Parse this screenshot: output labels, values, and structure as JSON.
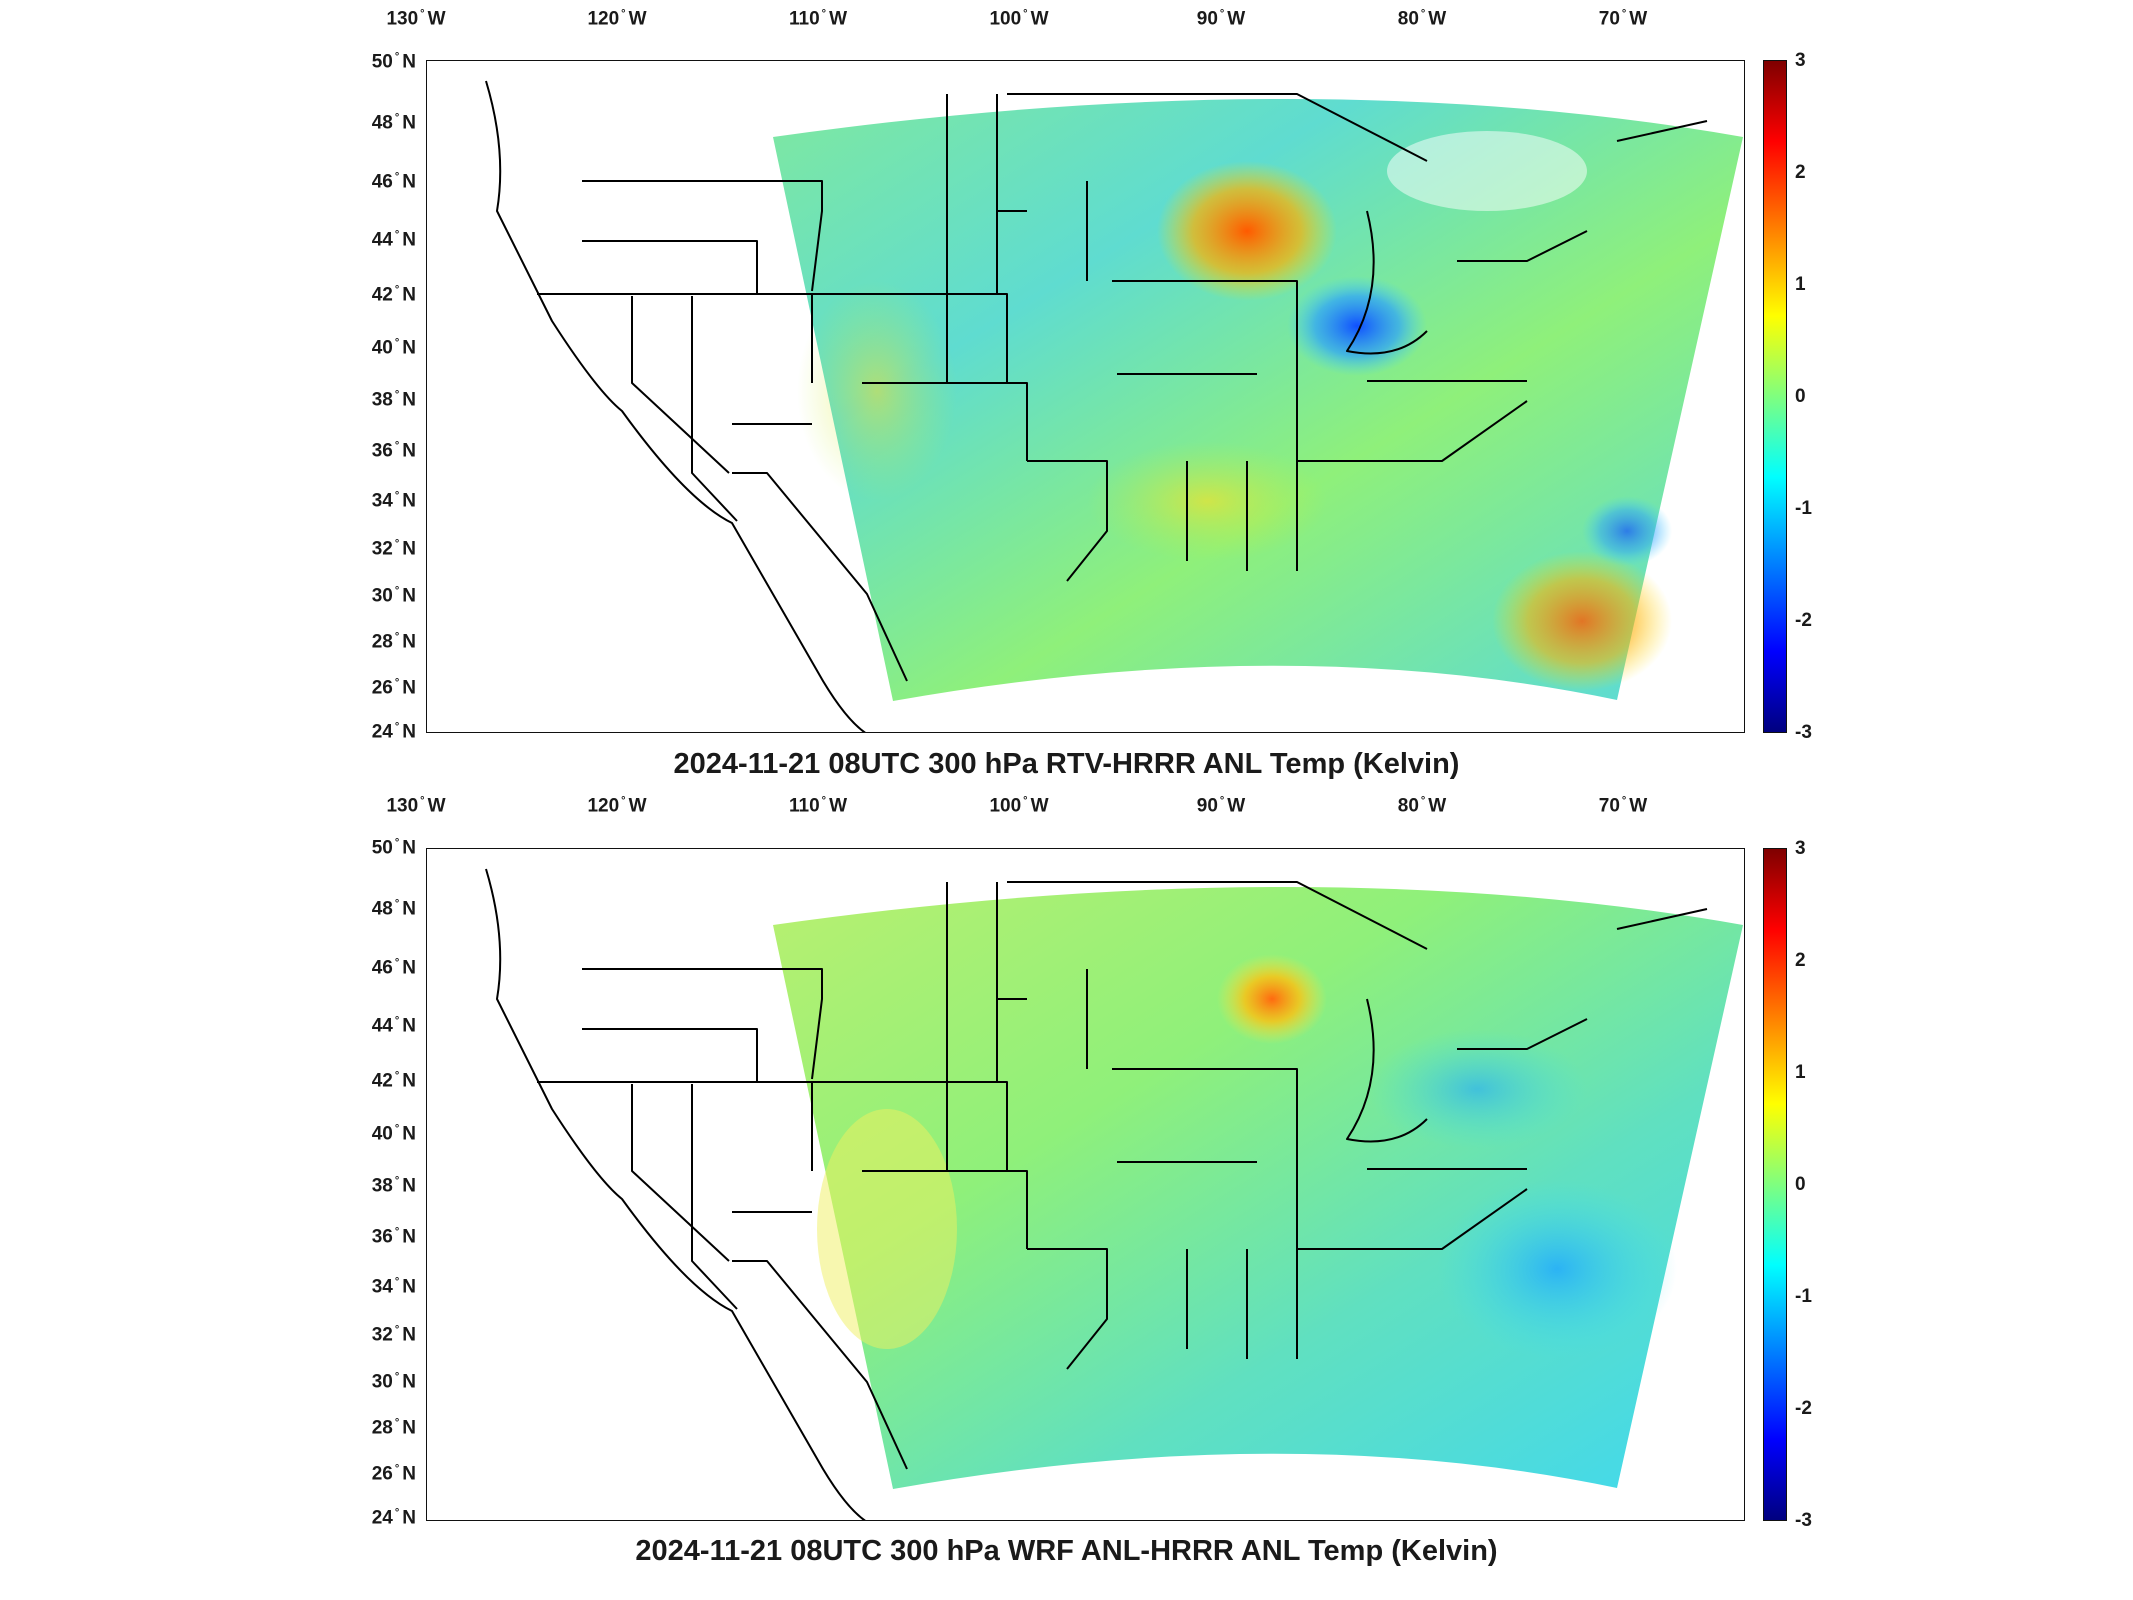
{
  "panels": [
    {
      "id": "top",
      "title": "2024-11-21 08UTC 300 hPa RTV-HRRR ANL Temp (Kelvin)",
      "lon_labels": [
        "130",
        "120",
        "110",
        "100",
        "90",
        "80",
        "70"
      ],
      "lon_suffix": "W",
      "lat_labels": [
        "50",
        "48",
        "46",
        "44",
        "42",
        "40",
        "38",
        "36",
        "34",
        "32",
        "30",
        "28",
        "26",
        "24"
      ],
      "lat_suffix": "N",
      "colorbar": {
        "min": -3,
        "max": 3,
        "ticks": [
          "3",
          "2",
          "1",
          "0",
          "-1",
          "-2",
          "-3"
        ],
        "colormap": "jet"
      }
    },
    {
      "id": "bottom",
      "title": "2024-11-21 08UTC 300 hPa WRF ANL-HRRR ANL Temp (Kelvin)",
      "lon_labels": [
        "130",
        "120",
        "110",
        "100",
        "90",
        "80",
        "70"
      ],
      "lon_suffix": "W",
      "lat_labels": [
        "50",
        "48",
        "46",
        "44",
        "42",
        "40",
        "38",
        "36",
        "34",
        "32",
        "30",
        "28",
        "26",
        "24"
      ],
      "lat_suffix": "N",
      "colorbar": {
        "min": -3,
        "max": 3,
        "ticks": [
          "3",
          "2",
          "1",
          "0",
          "-1",
          "-2",
          "-3"
        ],
        "colormap": "jet"
      }
    }
  ]
}
